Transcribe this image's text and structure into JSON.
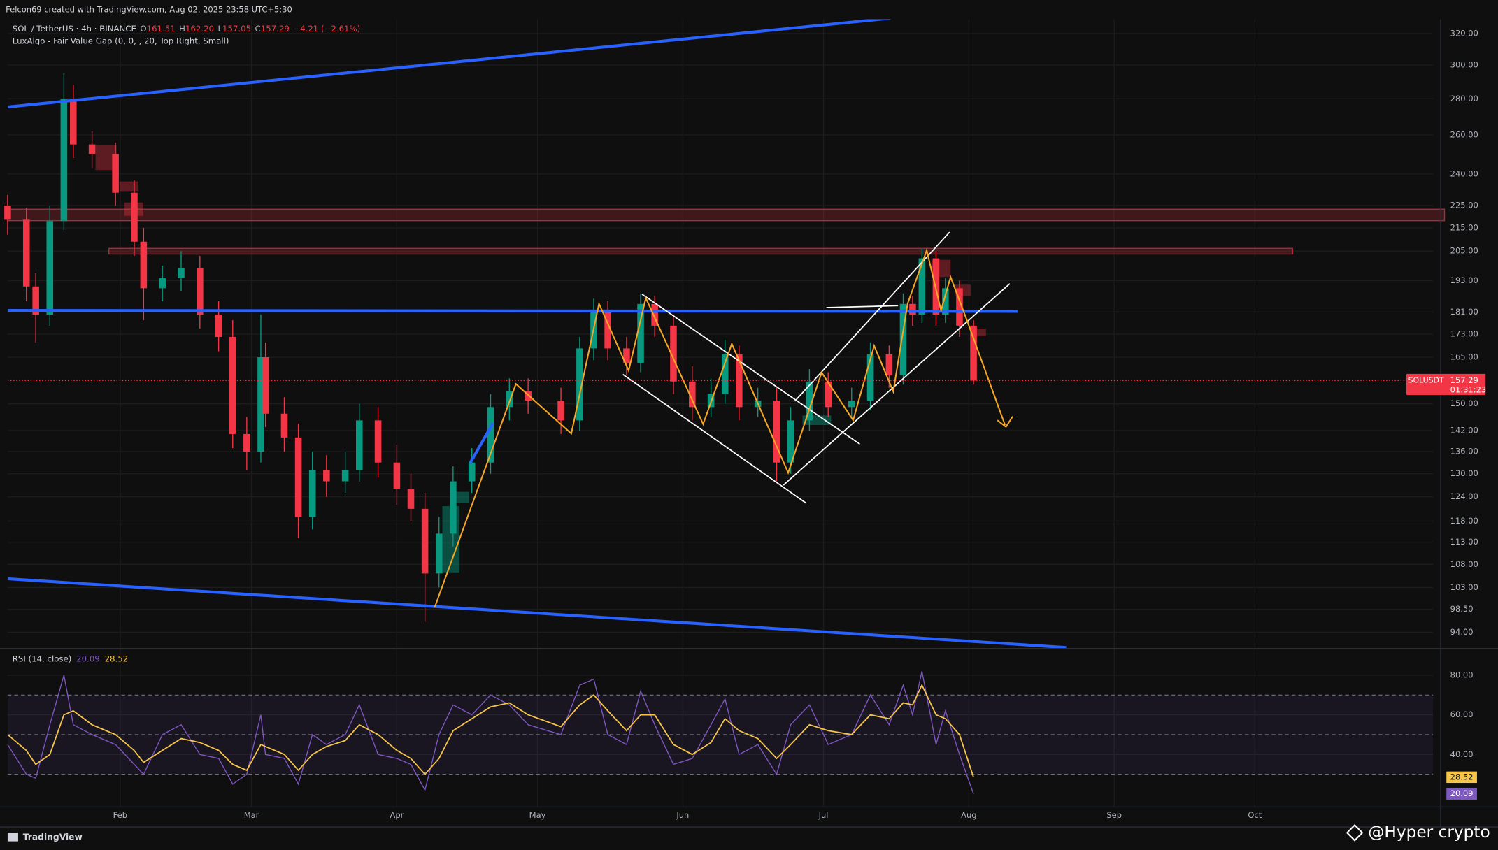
{
  "header": {
    "creator": "Felcon69 created with TradingView.com, Aug 02, 2025 23:58 UTC+5:30",
    "symbol": "SOL / TetherUS · 4h · BINANCE",
    "ohlc": [
      "O",
      "161.51",
      "H",
      "162.20",
      "L",
      "157.05",
      "C",
      "157.29",
      "−4.21 (−2.61%)"
    ],
    "indicator": "LuxAlgo - Fair Value Gap (0, 0, , 20, Top Right, Small)"
  },
  "chart_data": [
    {
      "type": "candlestick",
      "log": true,
      "grid": true,
      "up_color": "#089981",
      "down_color": "#f23645",
      "x": [
        8,
        12,
        14,
        17,
        20,
        22,
        26,
        31,
        35,
        37,
        41,
        45,
        49,
        53,
        56,
        59,
        62,
        63,
        67,
        70,
        73,
        76,
        80,
        83,
        87,
        91,
        94,
        97,
        100,
        103,
        107,
        111,
        115,
        119,
        126,
        130,
        133,
        136,
        140,
        143,
        146,
        150,
        154,
        158,
        161,
        164,
        168,
        172,
        175,
        179,
        183,
        188,
        192,
        196,
        199,
        201,
        203,
        206,
        208,
        211,
        214
      ],
      "open": [
        225,
        218.6,
        190.7,
        180,
        218,
        280,
        255,
        250,
        231,
        209,
        190,
        194,
        198,
        180,
        172,
        141,
        136,
        165,
        147,
        140,
        119,
        131,
        128,
        131,
        145,
        133,
        126,
        121,
        106,
        115,
        128,
        133,
        149,
        154,
        151,
        145,
        168,
        181,
        168,
        163,
        184,
        176,
        157,
        149,
        153,
        166,
        149,
        151,
        133,
        145,
        157,
        149,
        151,
        166,
        159,
        184,
        180,
        202,
        180,
        190,
        176
      ],
      "high": [
        230,
        224,
        196,
        225,
        295,
        288,
        262,
        256,
        237,
        215,
        199,
        205,
        203,
        185,
        178,
        146,
        180,
        170,
        152,
        144,
        136,
        135,
        136,
        150,
        149,
        138,
        130,
        125,
        119,
        132,
        137,
        153,
        158,
        158,
        155,
        172,
        186,
        185,
        172,
        188,
        187,
        180,
        162,
        158,
        171,
        169,
        155,
        155,
        149,
        161,
        160,
        155,
        170,
        169,
        188,
        187,
        206,
        205,
        194,
        193,
        178
      ],
      "low": [
        212,
        185,
        170,
        176,
        214,
        248,
        243,
        225,
        203,
        178,
        185,
        189,
        175,
        167,
        137,
        131,
        133,
        143,
        136,
        114,
        116,
        124,
        125,
        128,
        129,
        122,
        118,
        96,
        103,
        112,
        125,
        130,
        145,
        147,
        141,
        142,
        164,
        164,
        159,
        160,
        172,
        153,
        145,
        146,
        150,
        145,
        146,
        128,
        130,
        142,
        146,
        146,
        148,
        155,
        156,
        176,
        177,
        176,
        177,
        172,
        156
      ],
      "close": [
        218.6,
        190.7,
        180,
        218,
        280,
        255,
        250,
        231,
        209,
        190,
        194,
        198,
        180,
        172,
        141,
        136,
        165,
        147,
        140,
        119,
        131,
        128,
        131,
        145,
        133,
        126,
        121,
        106,
        115,
        128,
        133,
        149,
        154,
        151,
        145,
        168,
        181,
        168,
        163,
        184,
        176,
        157,
        149,
        153,
        166,
        149,
        151,
        133,
        145,
        157,
        149,
        151,
        166,
        159,
        184,
        180,
        202,
        180,
        190,
        176,
        157.29
      ],
      "xlim": [
        8,
        312
      ],
      "xticks": [
        {
          "value": 32,
          "label": "Feb"
        },
        {
          "value": 60,
          "label": "Mar"
        },
        {
          "value": 91,
          "label": "Apr"
        },
        {
          "value": 121,
          "label": "May"
        },
        {
          "value": 152,
          "label": "Jun"
        },
        {
          "value": 182,
          "label": "Jul"
        },
        {
          "value": 213,
          "label": "Aug"
        },
        {
          "value": 244,
          "label": "Sep"
        },
        {
          "value": 274,
          "label": "Oct"
        }
      ],
      "ylim": [
        91.1,
        330.8
      ],
      "yticks": [
        {
          "value": 320,
          "label": "320.00"
        },
        {
          "value": 300,
          "label": "300.00"
        },
        {
          "value": 280,
          "label": "280.00"
        },
        {
          "value": 260,
          "label": "260.00"
        },
        {
          "value": 240,
          "label": "240.00"
        },
        {
          "value": 225,
          "label": "225.00"
        },
        {
          "value": 215,
          "label": "215.00"
        },
        {
          "value": 205,
          "label": "205.00"
        },
        {
          "value": 193,
          "label": "193.00"
        },
        {
          "value": 181,
          "label": "181.00"
        },
        {
          "value": 173,
          "label": "173.00"
        },
        {
          "value": 165,
          "label": "165.00"
        },
        {
          "value": 150,
          "label": "150.00"
        },
        {
          "value": 142,
          "label": "142.00"
        },
        {
          "value": 136,
          "label": "136.00"
        },
        {
          "value": 130,
          "label": "130.00"
        },
        {
          "value": 124,
          "label": "124.00"
        },
        {
          "value": 118,
          "label": "118.00"
        },
        {
          "value": 113,
          "label": "113.00"
        },
        {
          "value": 108,
          "label": "108.00"
        },
        {
          "value": 103,
          "label": "103.00"
        },
        {
          "value": 98.5,
          "label": "98.50"
        },
        {
          "value": 94,
          "label": "94.00"
        }
      ],
      "last_label": {
        "name": "SOLUSDT",
        "countdown": "01:31:23"
      }
    },
    {
      "type": "line",
      "title": "RSI (14, close)",
      "grid": true,
      "x": [
        8,
        12,
        14,
        17,
        20,
        22,
        26,
        31,
        35,
        37,
        41,
        45,
        49,
        53,
        56,
        59,
        62,
        63,
        67,
        70,
        73,
        76,
        80,
        83,
        87,
        91,
        94,
        97,
        100,
        103,
        107,
        111,
        115,
        119,
        126,
        130,
        133,
        136,
        140,
        143,
        146,
        150,
        154,
        158,
        161,
        164,
        168,
        172,
        175,
        179,
        183,
        188,
        192,
        196,
        199,
        201,
        203,
        206,
        208,
        211,
        214
      ],
      "series": [
        {
          "color": "#7e57c2",
          "values": [
            45,
            30,
            28,
            55,
            80,
            55,
            50,
            45,
            35,
            30,
            50,
            55,
            40,
            38,
            25,
            30,
            60,
            40,
            38,
            25,
            50,
            45,
            50,
            65,
            40,
            38,
            35,
            22,
            50,
            65,
            60,
            70,
            65,
            55,
            50,
            75,
            78,
            50,
            45,
            72,
            55,
            35,
            38,
            55,
            68,
            40,
            45,
            30,
            55,
            65,
            45,
            50,
            70,
            55,
            75,
            60,
            82,
            45,
            62,
            40,
            20.09
          ]
        },
        {
          "color": "#f7c548",
          "values": [
            50,
            42,
            35,
            40,
            60,
            62,
            55,
            50,
            42,
            36,
            42,
            48,
            46,
            42,
            35,
            32,
            45,
            44,
            40,
            32,
            40,
            44,
            47,
            55,
            50,
            42,
            38,
            30,
            38,
            52,
            58,
            64,
            66,
            60,
            54,
            65,
            70,
            62,
            52,
            60,
            60,
            45,
            40,
            46,
            58,
            52,
            48,
            38,
            45,
            55,
            52,
            50,
            60,
            58,
            66,
            65,
            75,
            60,
            58,
            50,
            28.52
          ]
        }
      ],
      "xlim": [
        8,
        312
      ],
      "ylim": [
        13.5,
        93
      ],
      "yticks": [
        {
          "value": 80,
          "label": "80.00"
        },
        {
          "value": 60,
          "label": "60.00"
        },
        {
          "value": 40,
          "label": "40.00"
        }
      ],
      "bands": [
        30,
        50,
        70
      ]
    }
  ],
  "footer": {
    "brand": "TradingView",
    "watermark": "@Hyper crypto"
  }
}
